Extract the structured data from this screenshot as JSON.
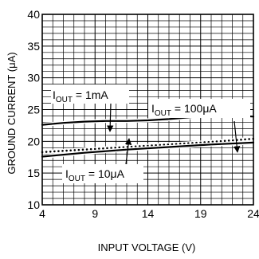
{
  "chart_data": {
    "type": "line",
    "xlabel": "INPUT  VOLTAGE (V)",
    "ylabel": "GROUND CURRENT (μA)",
    "xlim": [
      4,
      24
    ],
    "ylim": [
      10,
      40
    ],
    "xticks": [
      4,
      9,
      14,
      19,
      24
    ],
    "yticks": [
      10,
      15,
      20,
      25,
      30,
      35,
      40
    ],
    "x_tick_labels": [
      "4",
      "9",
      "14",
      "19",
      "24"
    ],
    "y_tick_labels": [
      "10",
      "15",
      "20",
      "25",
      "30",
      "35",
      "40"
    ],
    "grid": true,
    "grid_minor_x_step": 1,
    "grid_minor_y_step": 1,
    "series": [
      {
        "name": "IOUT = 1mA",
        "style": "solid",
        "color": "#000000",
        "x": [
          4,
          6,
          8,
          10,
          12,
          14,
          16,
          18,
          19,
          20,
          21,
          22,
          23,
          24
        ],
        "y": [
          22.6,
          22.9,
          23.1,
          23.2,
          23.2,
          23.3,
          23.5,
          23.8,
          24.0,
          24.1,
          24.1,
          24.0,
          24.0,
          23.9
        ]
      },
      {
        "name": "IOUT = 100μA",
        "style": "dotted",
        "color": "#000000",
        "x": [
          4,
          8,
          12,
          16,
          20,
          24
        ],
        "y": [
          18.3,
          18.7,
          19.1,
          19.5,
          19.9,
          20.4
        ]
      },
      {
        "name": "IOUT = 10μA",
        "style": "solid",
        "color": "#000000",
        "x": [
          4,
          8,
          12,
          16,
          20,
          24
        ],
        "y": [
          17.6,
          18.2,
          18.7,
          19.1,
          19.5,
          19.8
        ]
      }
    ],
    "annotations": [
      {
        "id": "a1",
        "label_main": "I",
        "label_sub": "OUT",
        "label_rest": " = 1mA"
      },
      {
        "id": "a100",
        "label_main": "I",
        "label_sub": "OUT",
        "label_rest": " = 100μA"
      },
      {
        "id": "a10",
        "label_main": "I",
        "label_sub": "OUT",
        "label_rest": " = 10μA"
      }
    ]
  }
}
